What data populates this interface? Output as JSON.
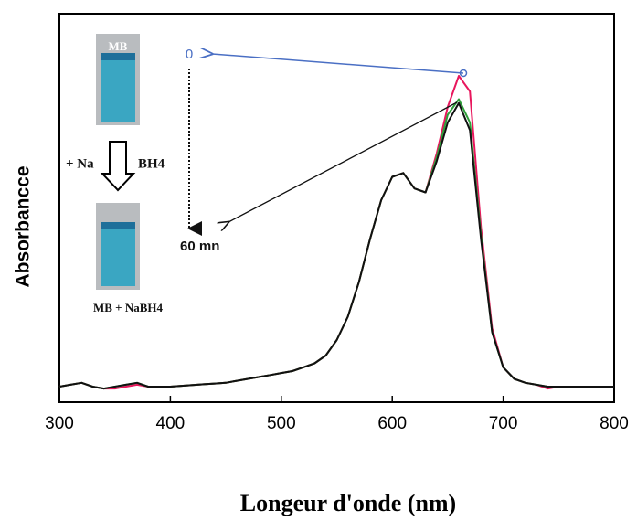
{
  "chart_data": {
    "type": "line",
    "x_label": "Longeur d'onde (nm)",
    "y_label": "Absorbancce",
    "x": [
      300,
      310,
      320,
      330,
      340,
      350,
      360,
      370,
      380,
      390,
      400,
      410,
      420,
      430,
      440,
      450,
      460,
      470,
      480,
      490,
      500,
      510,
      520,
      530,
      540,
      550,
      560,
      570,
      580,
      590,
      600,
      610,
      620,
      630,
      640,
      650,
      660,
      670,
      680,
      690,
      700,
      710,
      720,
      730,
      740,
      750,
      760,
      770,
      780,
      790,
      800
    ],
    "series": [
      {
        "color": "#e8175d",
        "values": [
          0.04,
          0.045,
          0.05,
          0.04,
          0.035,
          0.035,
          0.04,
          0.045,
          0.04,
          0.04,
          0.04,
          0.042,
          0.044,
          0.046,
          0.048,
          0.05,
          0.055,
          0.06,
          0.065,
          0.07,
          0.075,
          0.08,
          0.09,
          0.1,
          0.12,
          0.16,
          0.22,
          0.31,
          0.42,
          0.52,
          0.58,
          0.59,
          0.55,
          0.54,
          0.64,
          0.76,
          0.84,
          0.8,
          0.45,
          0.19,
          0.09,
          0.06,
          0.05,
          0.045,
          0.035,
          0.04,
          0.04,
          0.04,
          0.04,
          0.04,
          0.04
        ]
      },
      {
        "color": "#2e9e3a",
        "values": [
          0.04,
          0.045,
          0.05,
          0.04,
          0.035,
          0.04,
          0.045,
          0.05,
          0.04,
          0.04,
          0.04,
          0.042,
          0.044,
          0.046,
          0.048,
          0.05,
          0.055,
          0.06,
          0.065,
          0.07,
          0.075,
          0.08,
          0.09,
          0.1,
          0.12,
          0.16,
          0.22,
          0.31,
          0.42,
          0.52,
          0.58,
          0.59,
          0.55,
          0.54,
          0.63,
          0.74,
          0.78,
          0.72,
          0.43,
          0.18,
          0.09,
          0.06,
          0.05,
          0.045,
          0.04,
          0.04,
          0.04,
          0.04,
          0.04,
          0.04,
          0.04
        ]
      },
      {
        "color": "#111111",
        "values": [
          0.04,
          0.045,
          0.05,
          0.04,
          0.035,
          0.04,
          0.045,
          0.05,
          0.04,
          0.04,
          0.04,
          0.042,
          0.044,
          0.046,
          0.048,
          0.05,
          0.055,
          0.06,
          0.065,
          0.07,
          0.075,
          0.08,
          0.09,
          0.1,
          0.12,
          0.16,
          0.22,
          0.31,
          0.42,
          0.52,
          0.58,
          0.59,
          0.55,
          0.54,
          0.62,
          0.72,
          0.77,
          0.7,
          0.42,
          0.18,
          0.09,
          0.06,
          0.05,
          0.045,
          0.04,
          0.04,
          0.04,
          0.04,
          0.04,
          0.04,
          0.04
        ]
      }
    ],
    "xlim": [
      300,
      800
    ],
    "ylim": [
      0,
      1
    ],
    "xticks": [
      300,
      400,
      500,
      600,
      700,
      800
    ],
    "annotations": [
      "0",
      "60 mn",
      "MB",
      "+ Na",
      "BH4",
      "MB + NaBH4"
    ]
  }
}
